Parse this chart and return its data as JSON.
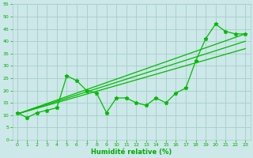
{
  "x": [
    0,
    1,
    2,
    3,
    4,
    5,
    6,
    7,
    8,
    9,
    10,
    11,
    12,
    13,
    14,
    15,
    16,
    17,
    18,
    19,
    20,
    21,
    22,
    23
  ],
  "y": [
    11,
    9,
    11,
    12,
    13,
    26,
    24,
    20,
    19,
    11,
    17,
    17,
    15,
    14,
    17,
    15,
    19,
    21,
    32,
    41,
    47,
    44,
    43,
    43
  ],
  "line_color": "#00bb00",
  "bg_color": "#cce8e8",
  "grid_color": "#aacccc",
  "xlabel": "Humidité relative (%)",
  "xlabel_color": "#00aa00",
  "tick_color": "#00aa00",
  "ylim": [
    0,
    55
  ],
  "xlim": [
    -0.5,
    23.5
  ],
  "yticks": [
    0,
    5,
    10,
    15,
    20,
    25,
    30,
    35,
    40,
    45,
    50,
    55
  ],
  "xticks": [
    0,
    1,
    2,
    3,
    4,
    5,
    6,
    7,
    8,
    9,
    10,
    11,
    12,
    13,
    14,
    15,
    16,
    17,
    18,
    19,
    20,
    21,
    22,
    23
  ],
  "trend_lines": [
    {
      "x0": 0,
      "y0": 10.5,
      "x1": 23,
      "y1": 43
    },
    {
      "x0": 0,
      "y0": 10.5,
      "x1": 23,
      "y1": 40
    },
    {
      "x0": 0,
      "y0": 10.5,
      "x1": 23,
      "y1": 37
    }
  ],
  "figsize": [
    3.2,
    2.0
  ],
  "dpi": 100
}
